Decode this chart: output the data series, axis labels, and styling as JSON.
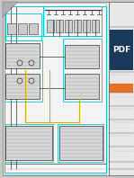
{
  "bg_color": "#c8c8c8",
  "paper_color": "#f0f0f0",
  "border_color": "#00c8d4",
  "line_dark": "#303030",
  "line_gray": "#888888",
  "line_yellow": "#c8b400",
  "orange_block": "#e87020",
  "pdf_bg": "#1a3a5c",
  "fig_width": 1.49,
  "fig_height": 1.98,
  "dpi": 100
}
